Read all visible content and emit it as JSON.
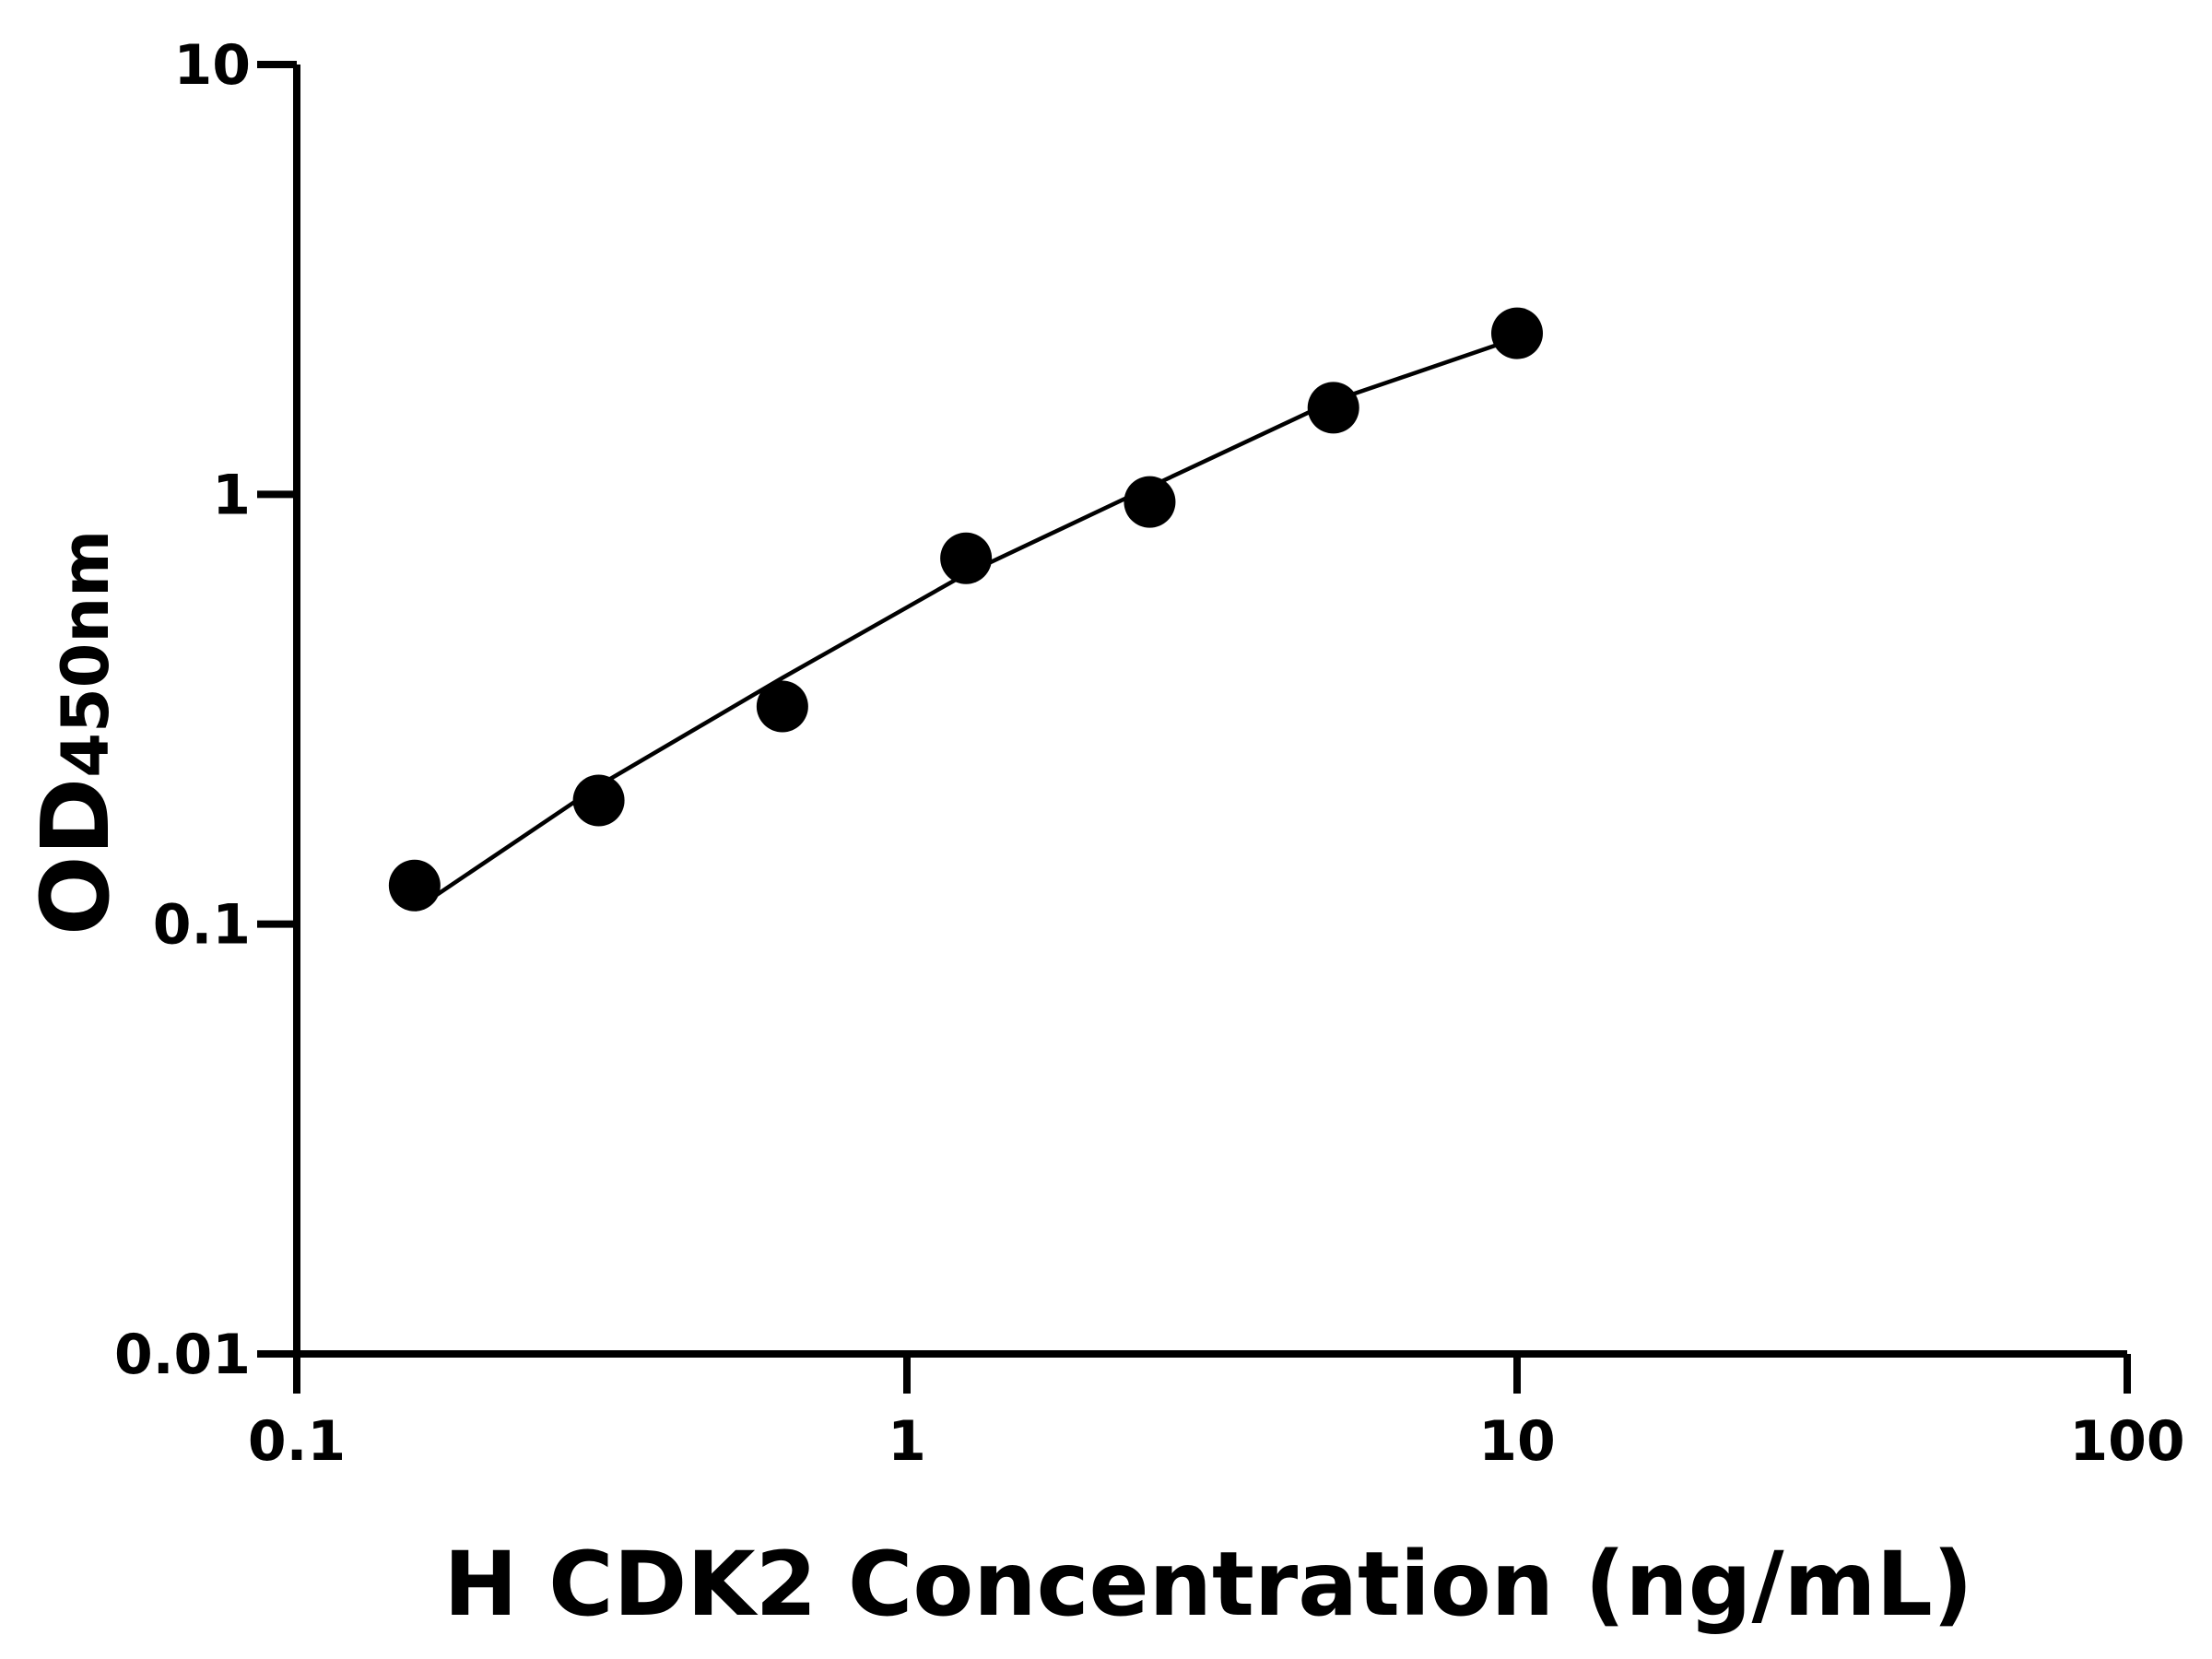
{
  "chart_data": {
    "type": "scatter",
    "x_label": "H CDK2 Concentration (ng/mL)",
    "y_label": "OD",
    "y_label_sub": "450nm",
    "x": [
      0.156,
      0.3125,
      0.625,
      1.25,
      2.5,
      5,
      10
    ],
    "values": [
      0.123,
      0.194,
      0.321,
      0.71,
      0.96,
      1.59,
      2.37
    ],
    "fit": {
      "x": [
        0.156,
        0.3125,
        0.625,
        1.25,
        2.5,
        5,
        10
      ],
      "values": [
        0.108,
        0.21,
        0.374,
        0.653,
        1.04,
        1.65,
        2.31
      ]
    },
    "color": "#000000",
    "xscale": "log",
    "yscale": "log",
    "xlim": [
      0.1,
      100
    ],
    "xticks": [
      0.1,
      1,
      10,
      100
    ],
    "ylim": [
      0.01,
      10
    ],
    "yticks": [
      0.01,
      0.1,
      1,
      10
    ],
    "grid": false
  }
}
